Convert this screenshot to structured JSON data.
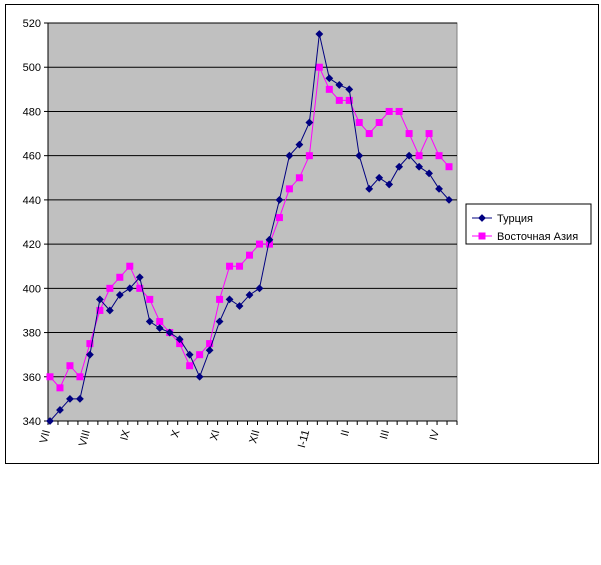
{
  "chart_data": {
    "type": "line",
    "title": "",
    "xlabel": "",
    "ylabel": "",
    "ylim": [
      340,
      520
    ],
    "yticks": [
      340,
      360,
      380,
      400,
      420,
      440,
      460,
      480,
      500,
      520
    ],
    "x_tick_labels": [
      {
        "label": "VII",
        "index": 0
      },
      {
        "label": "VIII",
        "index": 4
      },
      {
        "label": "IX",
        "index": 8
      },
      {
        "label": "X",
        "index": 13
      },
      {
        "label": "XI",
        "index": 17
      },
      {
        "label": "XII",
        "index": 21
      },
      {
        "label": "I-11",
        "index": 26
      },
      {
        "label": "II",
        "index": 30
      },
      {
        "label": "III",
        "index": 34
      },
      {
        "label": "IV",
        "index": 39
      }
    ],
    "grid": true,
    "legend_position": "right",
    "plot_background": "#c0c0c0",
    "series": [
      {
        "name": "Турция",
        "color": "#000080",
        "marker": "diamond",
        "values": [
          340,
          345,
          350,
          350,
          370,
          395,
          390,
          397,
          400,
          405,
          385,
          382,
          380,
          377,
          370,
          360,
          372,
          385,
          395,
          392,
          397,
          400,
          422,
          440,
          460,
          465,
          475,
          515,
          495,
          492,
          490,
          460,
          445,
          450,
          447,
          455,
          460,
          455,
          452,
          445,
          440
        ]
      },
      {
        "name": "Восточная Азия",
        "color": "#ff00ff",
        "marker": "square",
        "values": [
          360,
          355,
          365,
          360,
          375,
          390,
          400,
          405,
          410,
          400,
          395,
          385,
          380,
          375,
          365,
          370,
          375,
          395,
          410,
          410,
          415,
          420,
          420,
          432,
          445,
          450,
          460,
          500,
          490,
          485,
          485,
          475,
          470,
          475,
          480,
          480,
          470,
          460,
          470,
          460,
          455
        ]
      }
    ]
  }
}
